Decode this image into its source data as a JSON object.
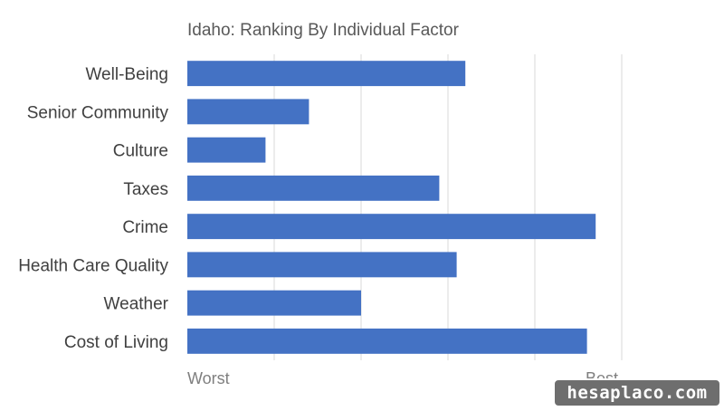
{
  "chart_data": {
    "type": "bar",
    "orientation": "horizontal",
    "title": "Idaho: Ranking By Individual Factor",
    "categories": [
      "Well-Being",
      "Senior Community",
      "Culture",
      "Taxes",
      "Crime",
      "Health Care Quality",
      "Weather",
      "Cost of Living"
    ],
    "values": [
      32,
      14,
      9,
      29,
      47,
      31,
      20,
      46
    ],
    "xlim": [
      0,
      50
    ],
    "x_tick_labels": {
      "start": "Worst",
      "end": "Best"
    },
    "grid": "vertical",
    "bar_color": "#4472c4"
  },
  "watermark": "hesaplaco.com"
}
